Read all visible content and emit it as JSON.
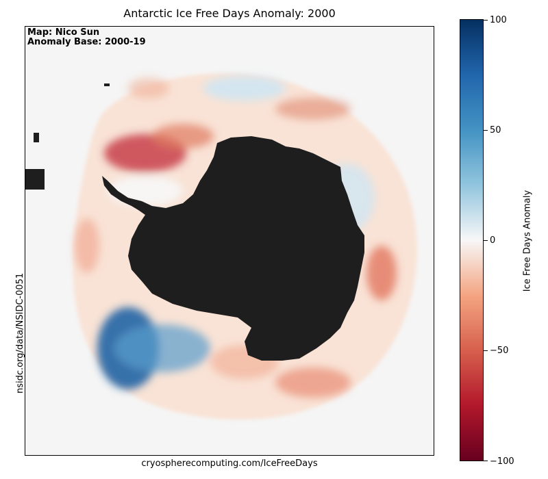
{
  "title": "Antarctic Ice Free Days Anomaly: 2000",
  "credit": {
    "line1": "Map: Nico Sun",
    "line2": "Anomaly Base: 2000-19"
  },
  "source_left": "nsidc.org/data/NSIDC-0051",
  "source_bottom": "cryospherecomputing.com/IceFreeDays",
  "colorbar": {
    "label": "Ice Free Days Anomaly",
    "min": -100,
    "max": 100,
    "ticks": [
      "100",
      "50",
      "0",
      "−50",
      "−100"
    ],
    "colors": {
      "strong_positive": "#053061",
      "positive": "#4393c3",
      "neutral": "#f7f7f7",
      "negative": "#d6604d",
      "strong_negative": "#67001f",
      "land": "#1e1e1e",
      "background": "#f5f5f5"
    }
  }
}
